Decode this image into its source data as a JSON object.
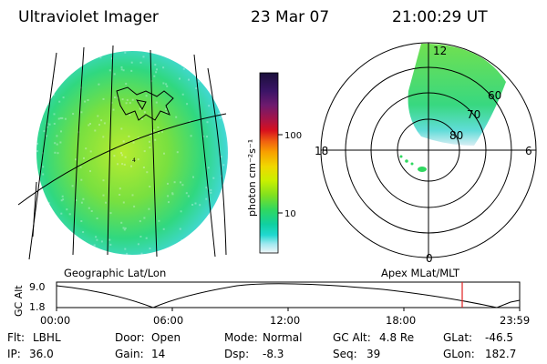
{
  "header": {
    "title": "Ultraviolet Imager",
    "date": "23 Mar 07",
    "time": "21:00:29 UT"
  },
  "colorbar": {
    "label": "photon cm⁻²s⁻¹",
    "ticks": [
      "100",
      "10"
    ],
    "colors": [
      "#1a0f3a",
      "#3a1466",
      "#6e1a6e",
      "#a81446",
      "#d8101e",
      "#f06010",
      "#f8a000",
      "#f0d800",
      "#c8f000",
      "#80e020",
      "#30d860",
      "#10d0a0",
      "#20d8d0",
      "#a0e8f0",
      "#e8f4f8"
    ]
  },
  "left_map": {
    "caption": "Geographic Lat/Lon"
  },
  "polar_plot": {
    "caption": "Apex MLat/MLT",
    "mlt_labels": [
      "12",
      "18",
      "6",
      "0"
    ],
    "mlat_labels": [
      "60",
      "70",
      "80"
    ]
  },
  "altitude_plot": {
    "ylabel": "GC Alt",
    "yticks": [
      "9.0",
      "1.8"
    ],
    "xticks": [
      "00:00",
      "06:00",
      "12:00",
      "18:00",
      "23:59"
    ]
  },
  "info": {
    "row1": [
      {
        "key": "Flt:",
        "value": "LBHL"
      },
      {
        "key": "Door:",
        "value": "Open"
      },
      {
        "key": "Mode:",
        "value": "Normal"
      },
      {
        "key": "GC Alt:",
        "value": "4.8 Re"
      },
      {
        "key": "GLat:",
        "value": "-46.5"
      }
    ],
    "row2": [
      {
        "key": "IP:",
        "value": "36.0"
      },
      {
        "key": "Gain:",
        "value": "14"
      },
      {
        "key": "Dsp:",
        "value": "-8.3"
      },
      {
        "key": "Seq:",
        "value": "39"
      },
      {
        "key": "GLon:",
        "value": "182.7"
      }
    ]
  }
}
